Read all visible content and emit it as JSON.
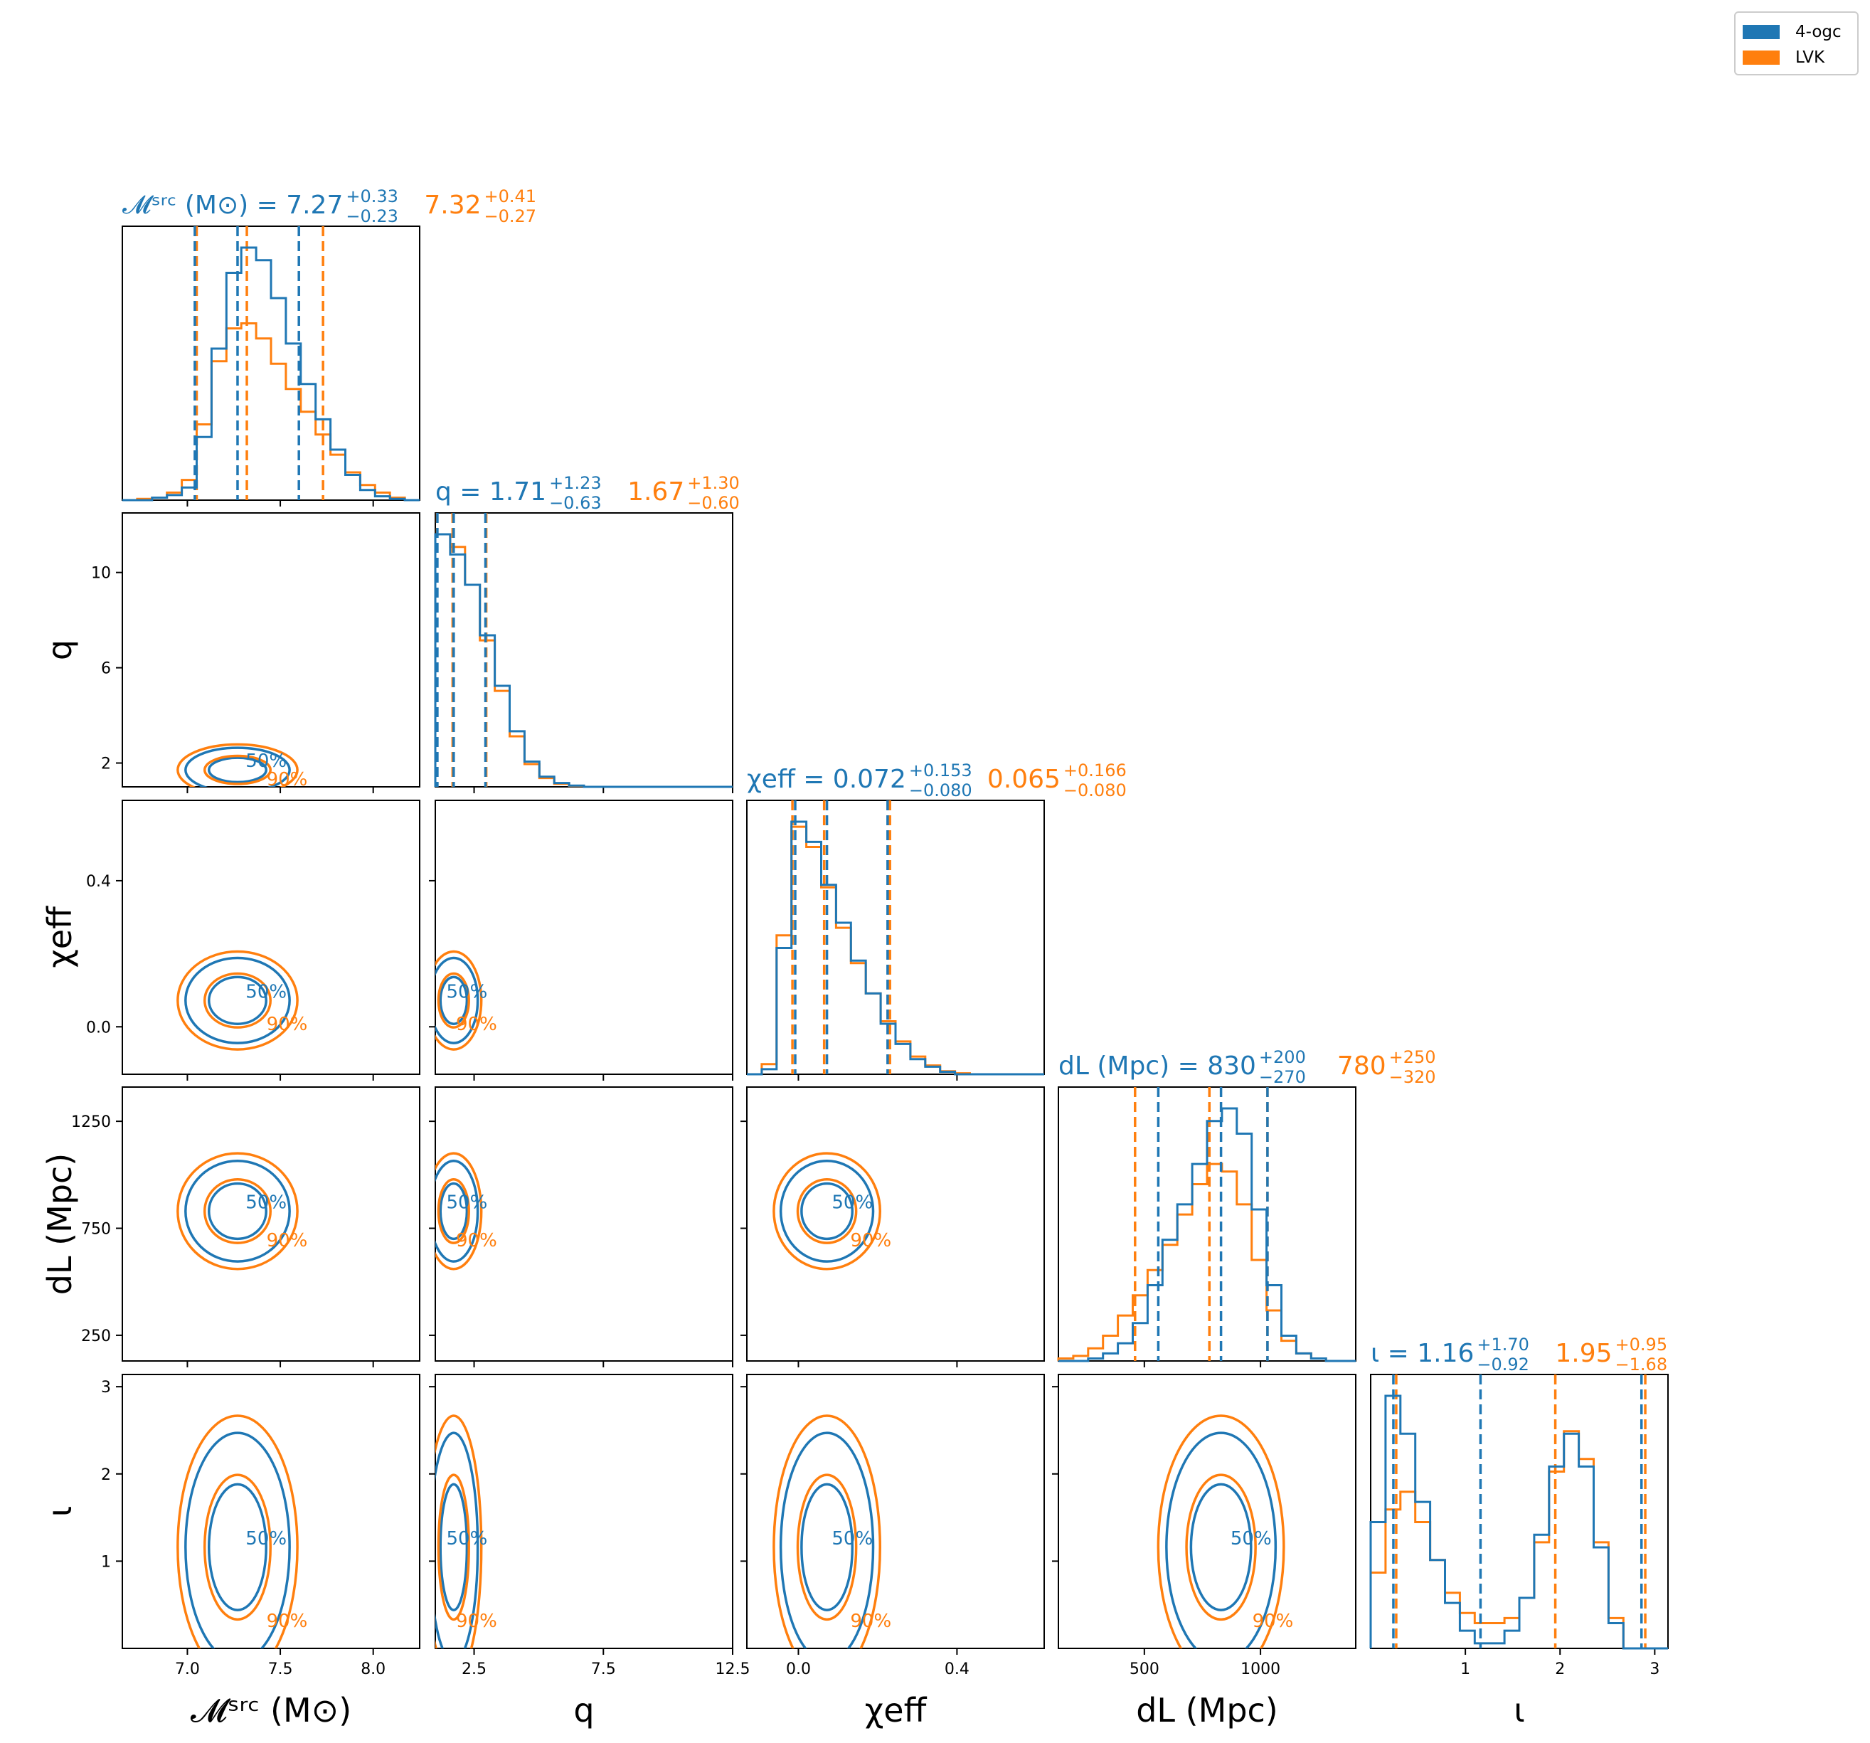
{
  "legend": {
    "items": [
      {
        "label": "4-ogc",
        "color": "#1f77b4"
      },
      {
        "label": "LVK",
        "color": "#ff7f0e"
      }
    ]
  },
  "colors": {
    "ogc": "#1f77b4",
    "lvk": "#ff7f0e"
  },
  "chart_data": {
    "type": "corner",
    "parameters": [
      {
        "key": "mc",
        "title_symbol": "𝓜ˢʳᶜ (M⊙)",
        "xlabel": "𝓜ˢʳᶜ (M⊙)",
        "ylabel": "",
        "range": [
          6.65,
          8.25
        ],
        "ticks": [
          7.0,
          7.5,
          8.0
        ],
        "tick_labels": [
          "7.0",
          "7.5",
          "8.0"
        ],
        "ogc": {
          "median": "7.27",
          "plus": "+0.33",
          "minus": "−0.23",
          "q": [
            7.04,
            7.27,
            7.6
          ]
        },
        "lvk": {
          "median": "7.32",
          "plus": "+0.41",
          "minus": "−0.27",
          "q": [
            7.05,
            7.32,
            7.73
          ]
        }
      },
      {
        "key": "q",
        "title_symbol": "q",
        "xlabel": "q",
        "ylabel": "q",
        "range": [
          1.0,
          12.5
        ],
        "ticks": [
          2.5,
          7.5,
          12.5
        ],
        "tick_labels": [
          "2.5",
          "7.5",
          "12.5"
        ],
        "yticks": [
          2,
          6,
          10
        ],
        "ytick_labels": [
          "2",
          "6",
          "10"
        ],
        "ogc": {
          "median": "1.71",
          "plus": "+1.23",
          "minus": "−0.63",
          "q": [
            1.08,
            1.71,
            2.94
          ]
        },
        "lvk": {
          "median": "1.67",
          "plus": "+1.30",
          "minus": "−0.60",
          "q": [
            1.07,
            1.67,
            2.97
          ]
        }
      },
      {
        "key": "chi",
        "title_symbol": "χeff",
        "xlabel": "χeff",
        "ylabel": "χeff",
        "range": [
          -0.13,
          0.62
        ],
        "ticks": [
          0.0,
          0.4
        ],
        "tick_labels": [
          "0.0",
          "0.4"
        ],
        "yticks": [
          0.0,
          0.4
        ],
        "ytick_labels": [
          "0.0",
          "0.4"
        ],
        "ogc": {
          "median": "0.072",
          "plus": "+0.153",
          "minus": "−0.080",
          "q": [
            -0.008,
            0.072,
            0.225
          ]
        },
        "lvk": {
          "median": "0.065",
          "plus": "+0.166",
          "minus": "−0.080",
          "q": [
            -0.015,
            0.065,
            0.231
          ]
        }
      },
      {
        "key": "dl",
        "title_symbol": "dL (Mpc)",
        "xlabel": "dL (Mpc)",
        "ylabel": "dL (Mpc)",
        "range": [
          130,
          1410
        ],
        "ticks": [
          500,
          1000
        ],
        "tick_labels": [
          "500",
          "1000"
        ],
        "yticks": [
          250,
          750,
          1250
        ],
        "ytick_labels": [
          "250",
          "750",
          "1250"
        ],
        "ogc": {
          "median": "830",
          "plus": "+200",
          "minus": "−270",
          "q": [
            560,
            830,
            1030
          ]
        },
        "lvk": {
          "median": "780",
          "plus": "+250",
          "minus": "−320",
          "q": [
            460,
            780,
            1030
          ]
        }
      },
      {
        "key": "iota",
        "title_symbol": "ι",
        "xlabel": "ι",
        "ylabel": "ι",
        "range": [
          0.0,
          3.14
        ],
        "ticks": [
          1,
          2,
          3
        ],
        "tick_labels": [
          "1",
          "2",
          "3"
        ],
        "yticks": [
          1,
          2,
          3
        ],
        "ytick_labels": [
          "1",
          "2",
          "3"
        ],
        "ogc": {
          "median": "1.16",
          "plus": "+1.70",
          "minus": "−0.92",
          "q": [
            0.24,
            1.16,
            2.86
          ]
        },
        "lvk": {
          "median": "1.95",
          "plus": "+0.95",
          "minus": "−1.68",
          "q": [
            0.27,
            1.95,
            2.9
          ]
        }
      }
    ],
    "contour_labels": [
      "50%",
      "90%"
    ],
    "histograms": {
      "mc": {
        "ogc": [
          0,
          0,
          0.01,
          0.02,
          0.05,
          0.25,
          0.6,
          0.9,
          1.0,
          0.95,
          0.8,
          0.62,
          0.46,
          0.32,
          0.2,
          0.1,
          0.04,
          0.015,
          0.005,
          0
        ],
        "lvk": [
          0,
          0.005,
          0.01,
          0.03,
          0.08,
          0.3,
          0.55,
          0.68,
          0.7,
          0.64,
          0.54,
          0.44,
          0.35,
          0.26,
          0.18,
          0.11,
          0.06,
          0.03,
          0.01,
          0
        ]
      },
      "q": {
        "ogc": [
          1.0,
          0.92,
          0.8,
          0.6,
          0.4,
          0.22,
          0.1,
          0.04,
          0.015,
          0.005,
          0,
          0,
          0,
          0,
          0,
          0,
          0,
          0,
          0,
          0
        ],
        "lvk": [
          1.0,
          0.95,
          0.8,
          0.58,
          0.38,
          0.2,
          0.09,
          0.035,
          0.012,
          0.004,
          0,
          0,
          0,
          0,
          0,
          0,
          0,
          0,
          0,
          0
        ]
      },
      "chi": {
        "ogc": [
          0,
          0.02,
          0.5,
          1.0,
          0.92,
          0.75,
          0.6,
          0.45,
          0.32,
          0.2,
          0.12,
          0.06,
          0.03,
          0.01,
          0,
          0,
          0,
          0,
          0,
          0
        ],
        "lvk": [
          0,
          0.04,
          0.55,
          0.98,
          0.9,
          0.74,
          0.58,
          0.44,
          0.32,
          0.21,
          0.13,
          0.07,
          0.035,
          0.012,
          0.004,
          0,
          0,
          0,
          0,
          0
        ],
        "title_note": ""
      },
      "dl": {
        "ogc": [
          0,
          0,
          0.01,
          0.03,
          0.07,
          0.15,
          0.3,
          0.48,
          0.62,
          0.78,
          0.95,
          1.0,
          0.9,
          0.6,
          0.3,
          0.1,
          0.03,
          0.01,
          0,
          0
        ],
        "lvk": [
          0.01,
          0.02,
          0.05,
          0.1,
          0.18,
          0.26,
          0.36,
          0.46,
          0.58,
          0.7,
          0.78,
          0.75,
          0.62,
          0.4,
          0.2,
          0.08,
          0.03,
          0.01,
          0,
          0
        ]
      },
      "iota": {
        "ogc": [
          0.5,
          1.0,
          0.85,
          0.58,
          0.35,
          0.18,
          0.07,
          0.02,
          0.02,
          0.07,
          0.2,
          0.45,
          0.72,
          0.85,
          0.72,
          0.4,
          0.1,
          0,
          0,
          0
        ],
        "lvk": [
          0.3,
          0.55,
          0.62,
          0.5,
          0.35,
          0.22,
          0.14,
          0.1,
          0.1,
          0.12,
          0.2,
          0.42,
          0.7,
          0.86,
          0.75,
          0.42,
          0.12,
          0,
          0,
          0
        ]
      }
    }
  }
}
